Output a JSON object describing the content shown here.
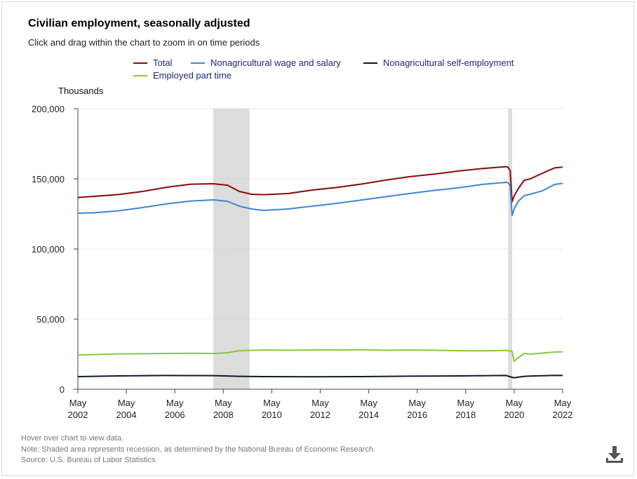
{
  "header": {
    "title": "Civilian employment, seasonally adjusted",
    "subtitle": "Click and drag within the chart to zoom in on time periods"
  },
  "footer": {
    "hover_note": "Hover over chart to view data.",
    "shade_note": "Note: Shaded area represents recession, as determined by the National Bureau of Economic Research.",
    "source": "Source: U.S. Bureau of Labor Statistics."
  },
  "icons": {
    "download": "download-icon"
  },
  "chart_data": {
    "type": "line",
    "units_label": "Thousands",
    "ylim": [
      0,
      200000
    ],
    "y_ticks": [
      0,
      50000,
      100000,
      150000,
      200000
    ],
    "y_tick_labels": [
      "0",
      "50,000",
      "100,000",
      "150,000",
      "200,000"
    ],
    "x_range": [
      "2002-05",
      "2022-05"
    ],
    "x_ticks": [
      {
        "month": "May",
        "year": "2002",
        "x": 2002.333
      },
      {
        "month": "May",
        "year": "2004",
        "x": 2004.333
      },
      {
        "month": "May",
        "year": "2006",
        "x": 2006.333
      },
      {
        "month": "May",
        "year": "2008",
        "x": 2008.333
      },
      {
        "month": "May",
        "year": "2010",
        "x": 2010.333
      },
      {
        "month": "May",
        "year": "2012",
        "x": 2012.333
      },
      {
        "month": "May",
        "year": "2014",
        "x": 2014.333
      },
      {
        "month": "May",
        "year": "2016",
        "x": 2016.333
      },
      {
        "month": "May",
        "year": "2018",
        "x": 2018.333
      },
      {
        "month": "May",
        "year": "2020",
        "x": 2020.333
      },
      {
        "month": "May",
        "year": "2022",
        "x": 2022.333
      }
    ],
    "grid": "horizontal-dotted",
    "legend_position": "top",
    "recessions": [
      {
        "start": 2007.917,
        "end": 2009.417
      },
      {
        "start": 2020.083,
        "end": 2020.25
      }
    ],
    "series": [
      {
        "name": "Total",
        "color": "#8b0a0a",
        "x": [
          2002.333,
          2003.0,
          2004.0,
          2005.0,
          2006.0,
          2007.0,
          2007.917,
          2008.5,
          2009.0,
          2009.5,
          2010.0,
          2011.0,
          2012.0,
          2013.0,
          2014.0,
          2015.0,
          2016.0,
          2017.0,
          2018.0,
          2019.0,
          2020.0,
          2020.083,
          2020.167,
          2020.25,
          2020.333,
          2020.5,
          2020.75,
          2021.0,
          2021.5,
          2022.0,
          2022.333
        ],
        "y": [
          136700,
          137500,
          138800,
          141000,
          144000,
          146200,
          146500,
          145500,
          141000,
          139000,
          138700,
          139500,
          142000,
          143800,
          146200,
          149000,
          151500,
          153300,
          155500,
          157300,
          158700,
          158200,
          155800,
          133700,
          137800,
          143000,
          149000,
          150000,
          154000,
          157800,
          158400
        ]
      },
      {
        "name": "Nonagricultural wage and salary",
        "color": "#3f85d4",
        "x": [
          2002.333,
          2003.0,
          2004.0,
          2005.0,
          2006.0,
          2007.0,
          2007.917,
          2008.5,
          2009.0,
          2009.5,
          2010.0,
          2011.0,
          2012.0,
          2013.0,
          2014.0,
          2015.0,
          2016.0,
          2017.0,
          2018.0,
          2019.0,
          2020.0,
          2020.083,
          2020.167,
          2020.25,
          2020.333,
          2020.5,
          2020.75,
          2021.0,
          2021.5,
          2022.0,
          2022.333
        ],
        "y": [
          125500,
          125800,
          127200,
          129500,
          132200,
          134200,
          135000,
          134000,
          130500,
          128500,
          127500,
          128500,
          130500,
          132500,
          134800,
          137200,
          139500,
          141700,
          143500,
          146000,
          147500,
          147200,
          145000,
          124000,
          128500,
          134000,
          138000,
          139000,
          141500,
          146000,
          146800
        ]
      },
      {
        "name": "Nonagricultural self-employment",
        "color": "#0e1a2b",
        "x": [
          2002.333,
          2004.0,
          2006.0,
          2008.0,
          2009.0,
          2010.0,
          2012.0,
          2014.0,
          2016.0,
          2018.0,
          2020.0,
          2020.25,
          2020.333,
          2020.75,
          2021.0,
          2021.5,
          2022.0,
          2022.333
        ],
        "y": [
          9000,
          9500,
          9800,
          9700,
          9200,
          9000,
          8900,
          9000,
          9300,
          9500,
          9800,
          8500,
          8200,
          9200,
          9400,
          9600,
          9900,
          9800
        ]
      },
      {
        "name": "Employed part time",
        "color": "#8dc63f",
        "x": [
          2002.333,
          2003.0,
          2004.0,
          2005.0,
          2006.0,
          2007.0,
          2008.0,
          2008.5,
          2009.0,
          2010.0,
          2011.0,
          2012.0,
          2013.0,
          2014.0,
          2015.0,
          2016.0,
          2017.0,
          2018.0,
          2019.0,
          2020.0,
          2020.25,
          2020.333,
          2020.5,
          2020.75,
          2021.0,
          2021.5,
          2022.0,
          2022.333
        ],
        "y": [
          24500,
          24700,
          25200,
          25300,
          25500,
          25600,
          25500,
          26000,
          27500,
          28000,
          27800,
          28000,
          28000,
          28100,
          27800,
          28000,
          27800,
          27500,
          27400,
          27700,
          27000,
          19900,
          22500,
          25500,
          25000,
          25800,
          26500,
          26700
        ]
      }
    ]
  }
}
